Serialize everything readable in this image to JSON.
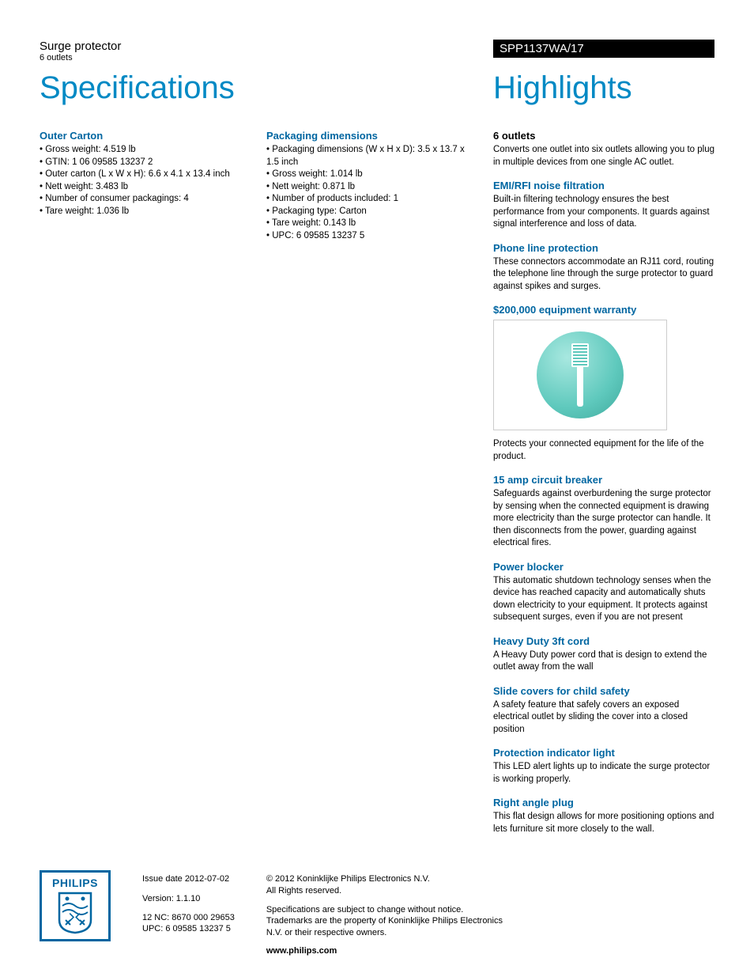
{
  "header": {
    "product_name": "Surge protector",
    "product_sub": "6 outlets",
    "model": "SPP1137WA/17"
  },
  "titles": {
    "left": "Specifications",
    "right": "Highlights"
  },
  "specs": {
    "outer_carton": {
      "heading": "Outer Carton",
      "items": [
        "Gross weight: 4.519 lb",
        "GTIN: 1 06 09585 13237 2",
        "Outer carton (L x W x H): 6.6 x 4.1 x 13.4 inch",
        "Nett weight: 3.483 lb",
        "Number of consumer packagings: 4",
        "Tare weight: 1.036 lb"
      ]
    },
    "packaging": {
      "heading": "Packaging dimensions",
      "items": [
        "Packaging dimensions (W x H x D): 3.5 x 13.7 x 1.5 inch",
        "Gross weight: 1.014 lb",
        "Nett weight: 0.871 lb",
        "Number of products included: 1",
        "Packaging type: Carton",
        "Tare weight: 0.143 lb",
        "UPC: 6 09585 13237 5"
      ]
    }
  },
  "highlights": [
    {
      "heading": "6 outlets",
      "heading_color": "#000000",
      "text": "Converts one outlet into six outlets allowing you to plug in multiple devices from one single AC outlet."
    },
    {
      "heading": "EMI/RFI noise filtration",
      "heading_color": "#0066a1",
      "text": "Built-in filtering technology ensures the best performance from your components. It guards against signal interference and loss of data."
    },
    {
      "heading": "Phone line protection",
      "heading_color": "#0066a1",
      "text": "These connectors accommodate an RJ11 cord, routing the telephone line through the surge protector to guard against spikes and surges."
    },
    {
      "heading": "$200,000 equipment warranty",
      "heading_color": "#0066a1",
      "text": "",
      "has_image": true,
      "caption": "Protects your connected equipment for the life of the product."
    },
    {
      "heading": "15 amp circuit breaker",
      "heading_color": "#0066a1",
      "text": "Safeguards against overburdening the surge protector by sensing when the connected equipment is drawing more electricity than the surge protector can handle. It then disconnects from the power, guarding against electrical fires."
    },
    {
      "heading": "Power blocker",
      "heading_color": "#0066a1",
      "text": "This automatic shutdown technology senses when the device has reached capacity and automatically shuts down electricity to your equipment. It protects against subsequent surges, even if you are not present"
    },
    {
      "heading": "Heavy Duty 3ft cord",
      "heading_color": "#0066a1",
      "text": "A Heavy Duty power cord that is design to extend the outlet away from the wall"
    },
    {
      "heading": "Slide covers for child safety",
      "heading_color": "#0066a1",
      "text": "A safety feature that safely covers an exposed electrical outlet by sliding the cover into a closed position"
    },
    {
      "heading": "Protection indicator light",
      "heading_color": "#0066a1",
      "text": "This LED alert lights up to indicate the surge protector is working properly."
    },
    {
      "heading": "Right angle plug",
      "heading_color": "#0066a1",
      "text": "This flat design allows for more positioning options and lets furniture sit more closely to the wall."
    }
  ],
  "footer": {
    "logo_text": "PHILIPS",
    "issue_date": "Issue date 2012-07-02",
    "version": "Version: 1.1.10",
    "nc": "12 NC: 8670 000 29653",
    "upc": "UPC: 6 09585 13237 5",
    "copyright": "© 2012 Koninklijke Philips Electronics N.V.",
    "rights": "All Rights reserved.",
    "disclaimer": "Specifications are subject to change without notice. Trademarks are the property of Koninklijke Philips Electronics N.V. or their respective owners.",
    "website": "www.philips.com"
  },
  "colors": {
    "blue_title": "#0089c4",
    "blue_heading": "#0066a1",
    "black": "#000000",
    "circle_grad_light": "#a8e8e0",
    "circle_grad_dark": "#3ea99c"
  }
}
